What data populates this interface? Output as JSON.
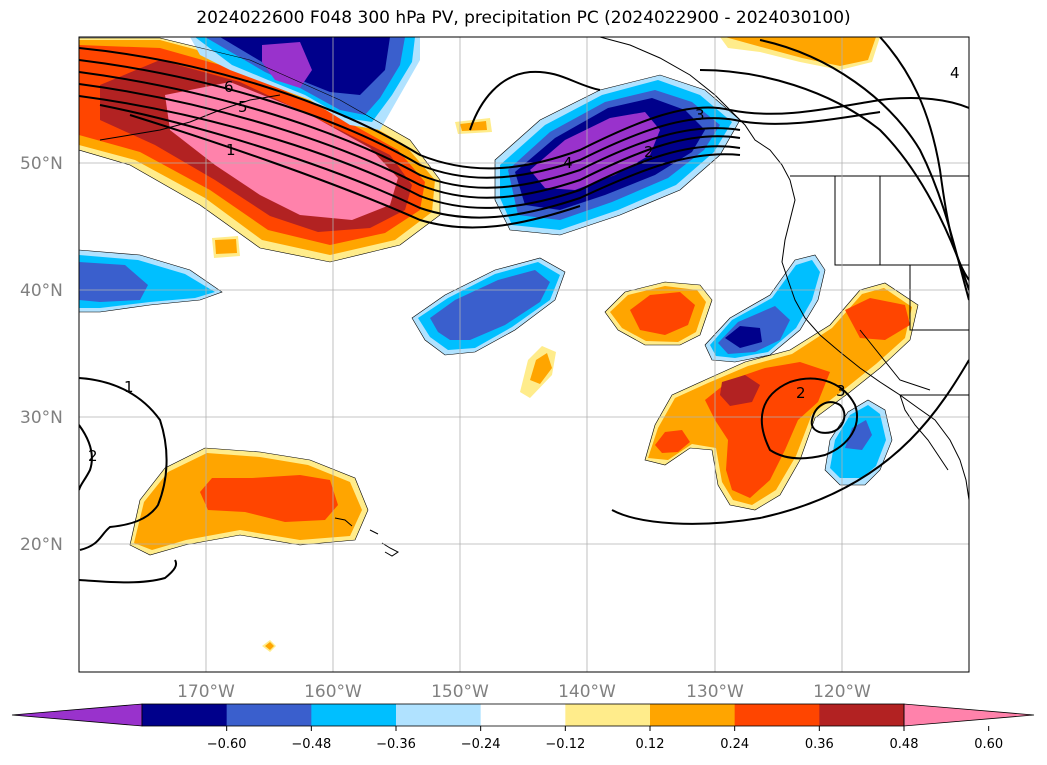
{
  "title": "2024022600 F048 300 hPa PV, precipitation PC (2024022900 - 2024030100)",
  "map": {
    "lat_labels": [
      "50°N",
      "40°N",
      "30°N",
      "20°N"
    ],
    "lon_labels": [
      "170°W",
      "160°W",
      "150°W",
      "140°W",
      "130°W",
      "120°W"
    ],
    "lon_range": [
      -180,
      -110
    ],
    "lat_range": [
      10,
      60
    ],
    "grid": true
  },
  "colorbar": {
    "ticks": [
      "−0.60",
      "−0.48",
      "−0.36",
      "−0.24",
      "−0.12",
      "0.12",
      "0.24",
      "0.36",
      "0.48",
      "0.60"
    ],
    "colors": [
      "#9932cc",
      "#00008b",
      "#3a5fcd",
      "#00bfff",
      "#b0e2ff",
      "#ffffff",
      "#ffec8b",
      "#ffa500",
      "#ff4500",
      "#b22222",
      "#ff82ab"
    ],
    "extend": "both"
  },
  "contour_labels": [
    "6",
    "5",
    "1",
    "4",
    "2",
    "3",
    "1",
    "2",
    "2",
    "3",
    "4"
  ],
  "colors": {
    "pink": "#ff82ab",
    "firebrick": "#b22222",
    "orangered": "#ff4500",
    "orange": "#ffa500",
    "lightyellow": "#ffec8b",
    "lightblue": "#b0e2ff",
    "deepskyblue": "#00bfff",
    "royalblue": "#3a5fcd",
    "navy": "#00008b",
    "purple": "#9932cc"
  }
}
